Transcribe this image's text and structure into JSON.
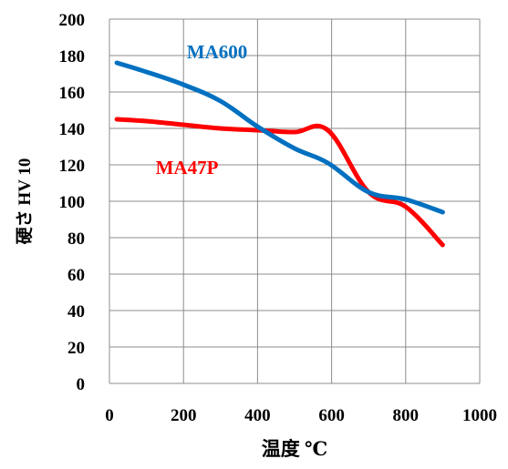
{
  "chart_data": {
    "type": "line",
    "title": "",
    "xlabel": "温度 ℃",
    "ylabel": "硬さ HV 10",
    "xlim": [
      0,
      1000
    ],
    "ylim": [
      0,
      200
    ],
    "xticks": [
      0,
      200,
      400,
      600,
      800,
      1000
    ],
    "yticks": [
      0,
      20,
      40,
      60,
      80,
      100,
      120,
      140,
      160,
      180,
      200
    ],
    "grid": true,
    "series": [
      {
        "name": "MA600",
        "color": "#0070C0",
        "x": [
          20,
          100,
          200,
          300,
          400,
          500,
          590,
          700,
          800,
          900
        ],
        "y": [
          176,
          171,
          164,
          155,
          141,
          129,
          121,
          105,
          101,
          94
        ]
      },
      {
        "name": "MA47P",
        "color": "#FF0000",
        "x": [
          20,
          100,
          200,
          300,
          400,
          500,
          590,
          700,
          800,
          900
        ],
        "y": [
          145,
          144,
          142,
          140,
          139,
          138,
          139,
          105,
          97,
          76
        ]
      }
    ]
  }
}
